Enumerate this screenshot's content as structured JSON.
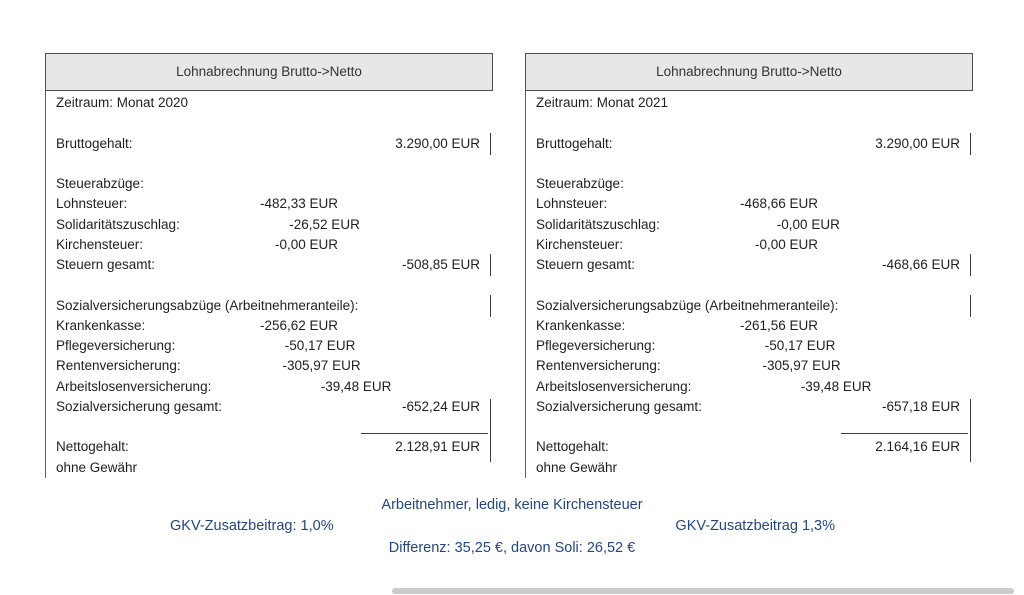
{
  "tables": {
    "t2020": {
      "title": "Lohnabrechnung Brutto->Netto",
      "zeitraum": "Zeitraum: Monat 2020",
      "brutto": {
        "label": "Bruttogehalt:",
        "value": "3.290,00 EUR"
      },
      "steuer_header": "Steuerabzüge:",
      "lohnsteuer": {
        "label": "Lohnsteuer:",
        "value": "-482,33 EUR"
      },
      "soli": {
        "label": "Solidaritätszuschlag:",
        "value": "-26,52 EUR"
      },
      "kirche": {
        "label": "Kirchensteuer:",
        "value": "-0,00 EUR"
      },
      "steuern_gesamt": {
        "label": "Steuern gesamt:",
        "value": "-508,85 EUR"
      },
      "sozial_header": "Sozialversicherungsabzüge (Arbeitnehmeranteile):",
      "kranken": {
        "label": "Krankenkasse:",
        "value": "-256,62 EUR"
      },
      "pflege": {
        "label": "Pflegeversicherung:",
        "value": "-50,17 EUR"
      },
      "rente": {
        "label": "Rentenversicherung:",
        "value": "-305,97 EUR"
      },
      "arbeitslos": {
        "label": "Arbeitslosenversicherung:",
        "value": "-39,48 EUR"
      },
      "sozial_gesamt": {
        "label": "Sozialversicherung gesamt:",
        "value": "-652,24 EUR"
      },
      "netto": {
        "label": "Nettogehalt:",
        "value": "2.128,91 EUR"
      },
      "disclaimer": "ohne Gewähr"
    },
    "t2021": {
      "title": "Lohnabrechnung Brutto->Netto",
      "zeitraum": "Zeitraum: Monat 2021",
      "brutto": {
        "label": "Bruttogehalt:",
        "value": "3.290,00 EUR"
      },
      "steuer_header": "Steuerabzüge:",
      "lohnsteuer": {
        "label": "Lohnsteuer:",
        "value": "-468,66 EUR"
      },
      "soli": {
        "label": "Solidaritätszuschlag:",
        "value": "-0,00 EUR"
      },
      "kirche": {
        "label": "Kirchensteuer:",
        "value": "-0,00 EUR"
      },
      "steuern_gesamt": {
        "label": "Steuern gesamt:",
        "value": "-468,66 EUR"
      },
      "sozial_header": "Sozialversicherungsabzüge (Arbeitnehmeranteile):",
      "kranken": {
        "label": "Krankenkasse:",
        "value": "-261,56 EUR"
      },
      "pflege": {
        "label": "Pflegeversicherung:",
        "value": "-50,17 EUR"
      },
      "rente": {
        "label": "Rentenversicherung:",
        "value": "-305,97 EUR"
      },
      "arbeitslos": {
        "label": "Arbeitslosenversicherung:",
        "value": "-39,48 EUR"
      },
      "sozial_gesamt": {
        "label": "Sozialversicherung gesamt:",
        "value": "-657,18 EUR"
      },
      "netto": {
        "label": "Nettogehalt:",
        "value": "2.164,16 EUR"
      },
      "disclaimer": "ohne Gewähr"
    }
  },
  "footer": {
    "line1": "Arbeitnehmer, ledig, keine Kirchensteuer",
    "gkv_left": "GKV-Zusatzbeitrag: 1,0%",
    "gkv_right": "GKV-Zusatzbeitrag 1,3%",
    "line3": "Differenz: 35,25 €, davon Soli: 26,52 €"
  },
  "colors": {
    "footer_text": "#234683",
    "header_bg": "#e7e7e7",
    "table_text": "#1f1f1f",
    "border": "#4f4f4f"
  }
}
